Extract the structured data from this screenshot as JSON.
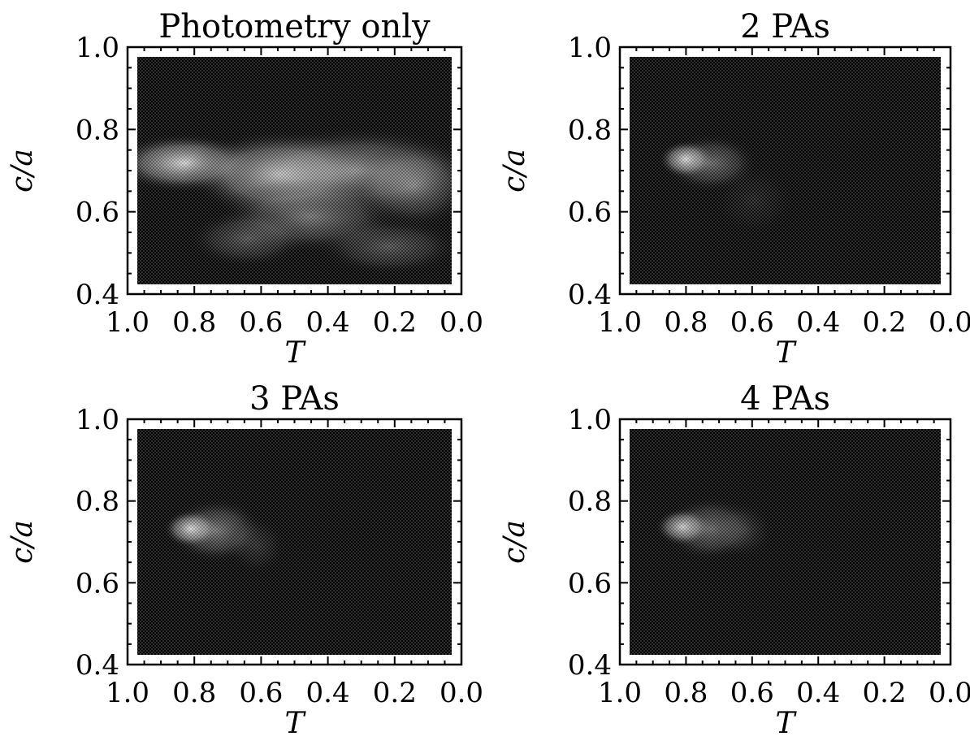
{
  "chart_data": [
    {
      "type": "heatmap",
      "title": "Photometry only",
      "xlabel": "T",
      "ylabel": "c/a",
      "xlim": [
        1.0,
        0.0
      ],
      "ylim": [
        0.4,
        1.0
      ],
      "x_ticks": [
        "1.0",
        "0.8",
        "0.6",
        "0.4",
        "0.2",
        "0.0"
      ],
      "y_ticks": [
        "0.4",
        "0.6",
        "0.8",
        "1.0"
      ],
      "colormap": "grayscale",
      "density_regions": [
        {
          "T": 0.85,
          "c_a": 0.72,
          "sigma_T": 0.12,
          "sigma_c_a": 0.04,
          "intensity": 0.85
        },
        {
          "T": 0.55,
          "c_a": 0.69,
          "sigma_T": 0.15,
          "sigma_c_a": 0.06,
          "intensity": 0.8
        },
        {
          "T": 0.3,
          "c_a": 0.7,
          "sigma_T": 0.2,
          "sigma_c_a": 0.06,
          "intensity": 0.55
        },
        {
          "T": 0.45,
          "c_a": 0.58,
          "sigma_T": 0.15,
          "sigma_c_a": 0.05,
          "intensity": 0.45
        },
        {
          "T": 0.12,
          "c_a": 0.66,
          "sigma_T": 0.1,
          "sigma_c_a": 0.06,
          "intensity": 0.4
        },
        {
          "T": 0.2,
          "c_a": 0.5,
          "sigma_T": 0.12,
          "sigma_c_a": 0.04,
          "intensity": 0.3
        },
        {
          "T": 0.65,
          "c_a": 0.52,
          "sigma_T": 0.1,
          "sigma_c_a": 0.04,
          "intensity": 0.3
        }
      ]
    },
    {
      "type": "heatmap",
      "title": "2 PAs",
      "xlabel": "T",
      "ylabel": "c/a",
      "xlim": [
        1.0,
        0.0
      ],
      "ylim": [
        0.4,
        1.0
      ],
      "x_ticks": [
        "1.0",
        "0.8",
        "0.6",
        "0.4",
        "0.2",
        "0.0"
      ],
      "y_ticks": [
        "0.4",
        "0.6",
        "0.8",
        "1.0"
      ],
      "colormap": "grayscale",
      "density_regions": [
        {
          "T": 0.82,
          "c_a": 0.73,
          "sigma_T": 0.045,
          "sigma_c_a": 0.025,
          "intensity": 0.9
        },
        {
          "T": 0.74,
          "c_a": 0.72,
          "sigma_T": 0.08,
          "sigma_c_a": 0.04,
          "intensity": 0.4
        },
        {
          "T": 0.6,
          "c_a": 0.62,
          "sigma_T": 0.07,
          "sigma_c_a": 0.05,
          "intensity": 0.1
        }
      ]
    },
    {
      "type": "heatmap",
      "title": "3 PAs",
      "xlabel": "T",
      "ylabel": "c/a",
      "xlim": [
        1.0,
        0.0
      ],
      "ylim": [
        0.4,
        1.0
      ],
      "x_ticks": [
        "1.0",
        "0.8",
        "0.6",
        "0.4",
        "0.2",
        "0.0"
      ],
      "y_ticks": [
        "0.4",
        "0.6",
        "0.8",
        "1.0"
      ],
      "colormap": "grayscale",
      "density_regions": [
        {
          "T": 0.83,
          "c_a": 0.735,
          "sigma_T": 0.045,
          "sigma_c_a": 0.025,
          "intensity": 0.9
        },
        {
          "T": 0.75,
          "c_a": 0.73,
          "sigma_T": 0.08,
          "sigma_c_a": 0.045,
          "intensity": 0.45
        },
        {
          "T": 0.62,
          "c_a": 0.69,
          "sigma_T": 0.05,
          "sigma_c_a": 0.04,
          "intensity": 0.15
        }
      ]
    },
    {
      "type": "heatmap",
      "title": "4 PAs",
      "xlabel": "T",
      "ylabel": "c/a",
      "xlim": [
        1.0,
        0.0
      ],
      "ylim": [
        0.4,
        1.0
      ],
      "x_ticks": [
        "1.0",
        "0.8",
        "0.6",
        "0.4",
        "0.2",
        "0.0"
      ],
      "y_ticks": [
        "0.4",
        "0.6",
        "0.8",
        "1.0"
      ],
      "colormap": "grayscale",
      "density_regions": [
        {
          "T": 0.83,
          "c_a": 0.74,
          "sigma_T": 0.045,
          "sigma_c_a": 0.025,
          "intensity": 0.85
        },
        {
          "T": 0.74,
          "c_a": 0.735,
          "sigma_T": 0.08,
          "sigma_c_a": 0.045,
          "intensity": 0.4
        },
        {
          "T": 0.63,
          "c_a": 0.73,
          "sigma_T": 0.05,
          "sigma_c_a": 0.04,
          "intensity": 0.15
        }
      ]
    }
  ]
}
